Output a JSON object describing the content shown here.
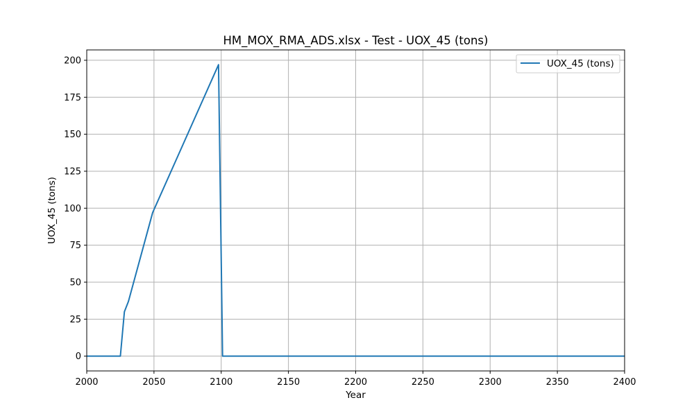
{
  "chart_data": {
    "type": "line",
    "title": "HM_MOX_RMA_ADS.xlsx - Test - UOX_45 (tons)",
    "xlabel": "Year",
    "ylabel": "UOX_45 (tons)",
    "xlim": [
      2000,
      2400
    ],
    "ylim": [
      -10,
      207
    ],
    "xticks": [
      2000,
      2050,
      2100,
      2150,
      2200,
      2250,
      2300,
      2350,
      2400
    ],
    "yticks": [
      0,
      25,
      50,
      75,
      100,
      125,
      150,
      175,
      200
    ],
    "grid": true,
    "legend": "top-right",
    "series": [
      {
        "name": "UOX_45 (tons)",
        "color": "#1f77b4",
        "x": [
          2000,
          2025,
          2028,
          2031,
          2049,
          2098,
          2101,
          2400
        ],
        "y": [
          0,
          0,
          30,
          37,
          97,
          197,
          0,
          0
        ]
      }
    ]
  }
}
